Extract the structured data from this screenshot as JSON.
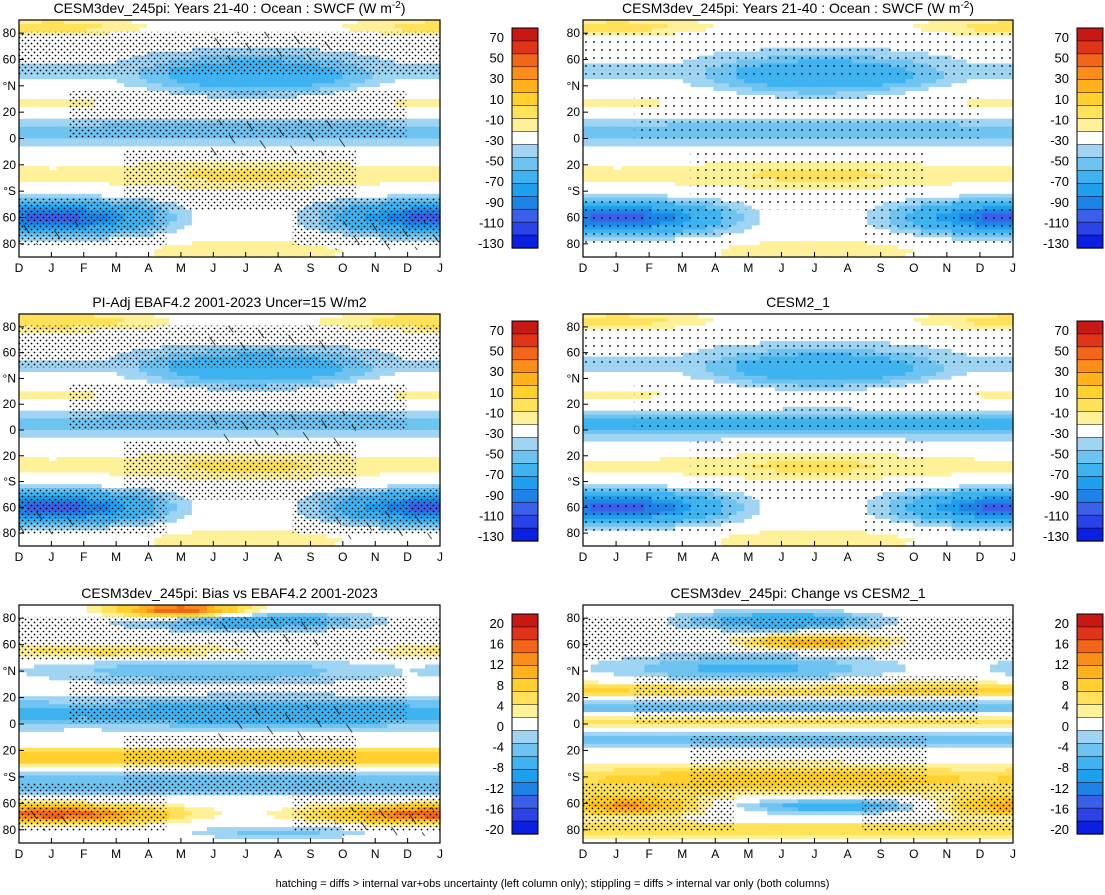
{
  "figure": {
    "footer": "hatching = diffs > internal var+obs uncertainty (left column only); stippling = diffs > internal var only (both columns)"
  },
  "colors": {
    "swcf": [
      "#0a1fe0",
      "#2b42e6",
      "#3a5fe8",
      "#1e83e6",
      "#1ea0ee",
      "#3fb3f0",
      "#6ec3f0",
      "#9fd5f3",
      "#ffffff",
      "#fff09a",
      "#ffe25a",
      "#ffd02e",
      "#ffb21c",
      "#fb8e1a",
      "#f36518",
      "#e0341a",
      "#c81814"
    ],
    "diff": [
      "#0a1fe0",
      "#2b42e6",
      "#3a5fe8",
      "#1e83e6",
      "#1ea0ee",
      "#3fb3f0",
      "#6ec3f0",
      "#9fd5f3",
      "#ffffff",
      "#fff09a",
      "#ffe25a",
      "#ffd02e",
      "#ffb21c",
      "#fb8e1a",
      "#f36518",
      "#e0341a",
      "#c81814"
    ]
  },
  "chart_data": [
    {
      "type": "heatmap",
      "title": "CESM3dev_245pi: Years 21-40 : Ocean : SWCF (W m",
      "title_sup": "-2",
      "title_end": ")",
      "field": "swcf",
      "hatching": true,
      "stippling": "dense",
      "x_ticks": [
        "D",
        "J",
        "F",
        "M",
        "A",
        "M",
        "J",
        "J",
        "A",
        "S",
        "O",
        "N",
        "D",
        "J"
      ],
      "y_ticks": [
        "80",
        "60",
        "°N",
        "20",
        "0",
        "20",
        "°S",
        "60",
        "80"
      ],
      "ylim": [
        -90,
        90
      ],
      "colorbar": {
        "labels": [
          "70",
          "50",
          "30",
          "10",
          "-10",
          "-30",
          "-50",
          "-70",
          "-90",
          "-110",
          "-130"
        ],
        "levels": [
          -140,
          -130,
          -120,
          -110,
          -100,
          -90,
          -80,
          -70,
          -60,
          -50,
          -40,
          -30,
          -20,
          -10,
          0,
          10,
          20,
          30,
          40,
          50,
          60,
          70,
          80
        ]
      }
    },
    {
      "type": "heatmap",
      "title": "CESM3dev_245pi: Years 21-40 : Ocean : SWCF (W m",
      "title_sup": "-2",
      "title_end": ")",
      "field": "swcf",
      "hatching": false,
      "stippling": "sparse",
      "x_ticks": [
        "D",
        "J",
        "F",
        "M",
        "A",
        "M",
        "J",
        "J",
        "A",
        "S",
        "O",
        "N",
        "D",
        "J"
      ],
      "y_ticks": [
        "80",
        "60",
        "°N",
        "20",
        "0",
        "20",
        "°S",
        "60",
        "80"
      ],
      "ylim": [
        -90,
        90
      ],
      "colorbar": {
        "labels": [
          "70",
          "50",
          "30",
          "10",
          "-10",
          "-30",
          "-50",
          "-70",
          "-90",
          "-110",
          "-130"
        ],
        "levels": [
          -140,
          -130,
          -120,
          -110,
          -100,
          -90,
          -80,
          -70,
          -60,
          -50,
          -40,
          -30,
          -20,
          -10,
          0,
          10,
          20,
          30,
          40,
          50,
          60,
          70,
          80
        ]
      }
    },
    {
      "type": "heatmap",
      "title": "PI-Adj EBAF4.2 2001-2023 Uncer=15 W/m2",
      "field": "swcf",
      "hatching": true,
      "stippling": "dense",
      "x_ticks": [
        "D",
        "J",
        "F",
        "M",
        "A",
        "M",
        "J",
        "J",
        "A",
        "S",
        "O",
        "N",
        "D",
        "J"
      ],
      "y_ticks": [
        "80",
        "60",
        "°N",
        "20",
        "0",
        "20",
        "°S",
        "60",
        "80"
      ],
      "ylim": [
        -90,
        90
      ],
      "colorbar": {
        "labels": [
          "70",
          "50",
          "30",
          "10",
          "-10",
          "-30",
          "-50",
          "-70",
          "-90",
          "-110",
          "-130"
        ],
        "levels": [
          -140,
          -130,
          -120,
          -110,
          -100,
          -90,
          -80,
          -70,
          -60,
          -50,
          -40,
          -30,
          -20,
          -10,
          0,
          10,
          20,
          30,
          40,
          50,
          60,
          70,
          80
        ]
      }
    },
    {
      "type": "heatmap",
      "title": "CESM2_1",
      "field": "swcf",
      "hatching": false,
      "stippling": "sparse",
      "x_ticks": [
        "D",
        "J",
        "F",
        "M",
        "A",
        "M",
        "J",
        "J",
        "A",
        "S",
        "O",
        "N",
        "D",
        "J"
      ],
      "y_ticks": [
        "80",
        "60",
        "°N",
        "20",
        "0",
        "20",
        "°S",
        "60",
        "80"
      ],
      "ylim": [
        -90,
        90
      ],
      "colorbar": {
        "labels": [
          "70",
          "50",
          "30",
          "10",
          "-10",
          "-30",
          "-50",
          "-70",
          "-90",
          "-110",
          "-130"
        ],
        "levels": [
          -140,
          -130,
          -120,
          -110,
          -100,
          -90,
          -80,
          -70,
          -60,
          -50,
          -40,
          -30,
          -20,
          -10,
          0,
          10,
          20,
          30,
          40,
          50,
          60,
          70,
          80
        ]
      }
    },
    {
      "type": "heatmap",
      "title": "CESM3dev_245pi: Bias vs EBAF4.2 2001-2023",
      "field": "bias",
      "hatching": true,
      "stippling": "dense",
      "x_ticks": [
        "D",
        "J",
        "F",
        "M",
        "A",
        "M",
        "J",
        "J",
        "A",
        "S",
        "O",
        "N",
        "D",
        "J"
      ],
      "y_ticks": [
        "80",
        "60",
        "°N",
        "20",
        "0",
        "20",
        "°S",
        "60",
        "80"
      ],
      "ylim": [
        -90,
        90
      ],
      "colorbar": {
        "labels": [
          "20",
          "16",
          "12",
          "8",
          "4",
          "0",
          "-4",
          "-8",
          "-12",
          "-16",
          "-20"
        ],
        "levels": [
          -22,
          -20,
          -18,
          -16,
          -14,
          -12,
          -10,
          -8,
          -6,
          -4,
          -2,
          0,
          2,
          4,
          6,
          8,
          10,
          12,
          14,
          16,
          18,
          20,
          22
        ]
      }
    },
    {
      "type": "heatmap",
      "title": "CESM3dev_245pi: Change vs CESM2_1",
      "field": "change",
      "hatching": false,
      "stippling": "dense",
      "x_ticks": [
        "D",
        "J",
        "F",
        "M",
        "A",
        "M",
        "J",
        "J",
        "A",
        "S",
        "O",
        "N",
        "D",
        "J"
      ],
      "y_ticks": [
        "80",
        "60",
        "°N",
        "20",
        "0",
        "20",
        "°S",
        "60",
        "80"
      ],
      "ylim": [
        -90,
        90
      ],
      "colorbar": {
        "labels": [
          "20",
          "16",
          "12",
          "8",
          "4",
          "0",
          "-4",
          "-8",
          "-12",
          "-16",
          "-20"
        ],
        "levels": [
          -22,
          -20,
          -18,
          -16,
          -14,
          -12,
          -10,
          -8,
          -6,
          -4,
          -2,
          0,
          2,
          4,
          6,
          8,
          10,
          12,
          14,
          16,
          18,
          20,
          22
        ]
      }
    }
  ]
}
